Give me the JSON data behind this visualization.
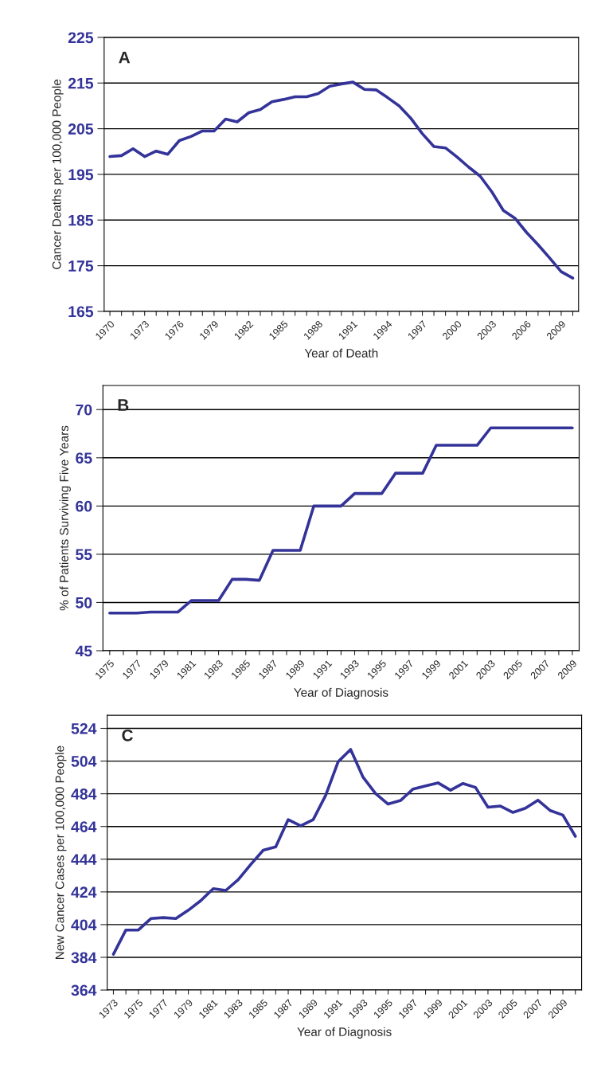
{
  "chart_data": [
    {
      "type": "line",
      "ylabel": "Cancer Deaths per 100,000 People",
      "xlabel": "Year of Death",
      "annotations": [
        "A"
      ],
      "categories": [
        "1970",
        null,
        null,
        "1973",
        null,
        null,
        "1976",
        null,
        null,
        "1979",
        null,
        null,
        "1982",
        null,
        null,
        "1985",
        null,
        null,
        "1988",
        null,
        null,
        "1991",
        null,
        null,
        "1994",
        null,
        null,
        "1997",
        null,
        null,
        "2000",
        null,
        null,
        "2003",
        null,
        null,
        "2006",
        null,
        null,
        "2009",
        null
      ],
      "series": [
        {
          "color": "#333399",
          "values": [
            198.9,
            199.1,
            200.6,
            198.9,
            200.1,
            199.4,
            202.4,
            203.3,
            204.5,
            204.5,
            207.1,
            206.5,
            208.5,
            209.2,
            210.9,
            211.4,
            212.0,
            212.0,
            212.7,
            214.3,
            214.8,
            215.2,
            213.6,
            213.5,
            211.8,
            210.0,
            207.3,
            203.9,
            201.1,
            200.8,
            198.8,
            196.6,
            194.6,
            191.2,
            187.1,
            185.4,
            182.3,
            179.6,
            176.7,
            173.7,
            172.3
          ]
        }
      ],
      "ylim": [
        165,
        225
      ],
      "yticks": [
        165,
        175,
        185,
        195,
        205,
        215,
        225
      ],
      "grid": "y",
      "legend": false
    },
    {
      "type": "line",
      "ylabel": "% of Patients Surviving Five Years",
      "xlabel": "Year of Diagnosis",
      "annotations": [
        "B"
      ],
      "categories": [
        "1975",
        null,
        "1977",
        null,
        "1979",
        null,
        "1981",
        null,
        "1983",
        null,
        "1985",
        null,
        "1987",
        null,
        "1989",
        null,
        "1991",
        null,
        "1993",
        null,
        "1995",
        null,
        "1997",
        null,
        "1999",
        null,
        "2001",
        null,
        "2003",
        null,
        "2005",
        null,
        "2007",
        null,
        "2009"
      ],
      "series": [
        {
          "color": "#333399",
          "values": [
            48.9,
            48.9,
            48.9,
            49.0,
            49.0,
            49.0,
            50.2,
            50.2,
            50.2,
            52.4,
            52.4,
            52.3,
            55.4,
            55.4,
            55.4,
            60.0,
            60.0,
            60.0,
            61.3,
            61.3,
            61.3,
            63.4,
            63.4,
            63.4,
            66.3,
            66.3,
            66.3,
            66.3,
            68.1,
            68.1,
            68.1,
            68.1,
            68.1,
            68.1,
            68.1
          ]
        }
      ],
      "ylim": [
        45,
        72.5
      ],
      "yticks": [
        45,
        50,
        55,
        60,
        65,
        70
      ],
      "grid": "y",
      "legend": false
    },
    {
      "type": "line",
      "ylabel": "New Cancer Cases per 100,000 People",
      "xlabel": "Year of Diagnosis",
      "annotations": [
        "C"
      ],
      "categories": [
        "1973",
        null,
        "1975",
        null,
        "1977",
        null,
        "1979",
        null,
        "1981",
        null,
        "1983",
        null,
        "1985",
        null,
        "1987",
        null,
        "1989",
        null,
        "1991",
        null,
        "1993",
        null,
        "1995",
        null,
        "1997",
        null,
        "1999",
        null,
        "2001",
        null,
        "2003",
        null,
        "2005",
        null,
        "2007",
        null,
        "2009",
        null
      ],
      "series": [
        {
          "color": "#333399",
          "values": [
            385.9,
            400.7,
            400.7,
            407.7,
            408.3,
            407.7,
            412.8,
            418.7,
            426.0,
            424.9,
            431.5,
            440.8,
            449.5,
            451.6,
            468.2,
            464.4,
            468.2,
            483.0,
            503.6,
            511.1,
            494.1,
            484.1,
            477.7,
            479.9,
            486.9,
            488.8,
            490.7,
            486.2,
            490.3,
            487.9,
            475.8,
            476.5,
            472.6,
            475.2,
            480.1,
            473.7,
            471.0,
            458.0
          ]
        }
      ],
      "ylim": [
        364,
        532
      ],
      "yticks": [
        364,
        384,
        404,
        424,
        444,
        464,
        484,
        504,
        524
      ],
      "grid": "y",
      "legend": false
    }
  ]
}
